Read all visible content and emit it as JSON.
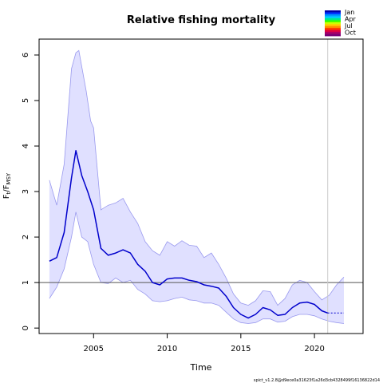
{
  "chart_data": {
    "type": "line",
    "title": "Relative fishing mortality",
    "xlabel": "Time",
    "ylabel_main": "F",
    "ylabel_sub1": "t",
    "ylabel_sep": "/F",
    "ylabel_sub2": "MSY",
    "xlim": [
      2001.3,
      2023.3
    ],
    "ylim": [
      -0.12,
      6.35
    ],
    "x_ticks": [
      2005,
      2010,
      2015,
      2020
    ],
    "y_ticks": [
      0,
      1,
      2,
      3,
      4,
      5,
      6
    ],
    "reference_line": 1,
    "last_data_time": 2020.9,
    "grid": false,
    "legend": {
      "position": "top-right",
      "items": [
        {
          "label": "Jan",
          "color": "#0000ff"
        },
        {
          "label": "Apr",
          "color": "#00cc00"
        },
        {
          "label": "Jul",
          "color": "#ff6600"
        },
        {
          "label": "Oct",
          "color": "#990066"
        }
      ]
    },
    "colors": {
      "line": "#0000cc",
      "ci_fill": "#e0e0ff",
      "ci_stroke": "#9999ee",
      "reference": "#555555",
      "vline": "#cccccc"
    },
    "series": [
      {
        "key": "estimate",
        "x": [
          2002.0,
          2002.5,
          2003.0,
          2003.5,
          2003.8,
          2004.2,
          2004.6,
          2005.0,
          2005.5,
          2006.0,
          2006.5,
          2007.0,
          2007.5,
          2008.0,
          2008.5,
          2009.0,
          2009.5,
          2010.0,
          2010.5,
          2011.0,
          2011.5,
          2012.0,
          2012.5,
          2013.0,
          2013.5,
          2014.0,
          2014.5,
          2015.0,
          2015.5,
          2016.0,
          2016.5,
          2017.0,
          2017.5,
          2018.0,
          2018.5,
          2019.0,
          2019.5,
          2020.0,
          2020.5,
          2020.9
        ],
        "y": [
          1.47,
          1.55,
          2.1,
          3.3,
          3.9,
          3.35,
          3.0,
          2.6,
          1.75,
          1.6,
          1.65,
          1.72,
          1.65,
          1.4,
          1.25,
          1.0,
          0.95,
          1.08,
          1.1,
          1.1,
          1.05,
          1.02,
          0.95,
          0.92,
          0.88,
          0.7,
          0.45,
          0.3,
          0.22,
          0.3,
          0.45,
          0.4,
          0.28,
          0.3,
          0.45,
          0.55,
          0.57,
          0.52,
          0.38,
          0.33
        ]
      },
      {
        "key": "estimate_forecast",
        "x": [
          2020.9,
          2021.5,
          2022.0
        ],
        "y": [
          0.33,
          0.33,
          0.33
        ]
      },
      {
        "key": "ci_upper",
        "x": [
          2002.0,
          2002.5,
          2003.0,
          2003.5,
          2003.8,
          2004.0,
          2004.5,
          2004.8,
          2005.0,
          2005.5,
          2006.0,
          2006.5,
          2007.0,
          2007.5,
          2008.0,
          2008.5,
          2009.0,
          2009.5,
          2010.0,
          2010.5,
          2011.0,
          2011.5,
          2012.0,
          2012.5,
          2013.0,
          2013.5,
          2014.0,
          2014.5,
          2015.0,
          2015.5,
          2016.0,
          2016.5,
          2017.0,
          2017.5,
          2018.0,
          2018.5,
          2019.0,
          2019.5,
          2020.0,
          2020.5,
          2021.0,
          2021.5,
          2022.0
        ],
        "y": [
          3.25,
          2.7,
          3.6,
          5.7,
          6.05,
          6.1,
          5.2,
          4.55,
          4.4,
          2.6,
          2.7,
          2.75,
          2.85,
          2.55,
          2.3,
          1.9,
          1.7,
          1.6,
          1.9,
          1.8,
          1.92,
          1.82,
          1.8,
          1.55,
          1.65,
          1.4,
          1.1,
          0.75,
          0.55,
          0.5,
          0.6,
          0.82,
          0.8,
          0.5,
          0.65,
          0.95,
          1.05,
          1.0,
          0.8,
          0.62,
          0.72,
          0.95,
          1.12
        ]
      },
      {
        "key": "ci_lower",
        "x": [
          2002.0,
          2002.5,
          2003.0,
          2003.5,
          2003.8,
          2004.2,
          2004.6,
          2005.0,
          2005.5,
          2006.0,
          2006.5,
          2007.0,
          2007.5,
          2008.0,
          2008.5,
          2009.0,
          2009.5,
          2010.0,
          2010.5,
          2011.0,
          2011.5,
          2012.0,
          2012.5,
          2013.0,
          2013.5,
          2014.0,
          2014.5,
          2015.0,
          2015.5,
          2016.0,
          2016.5,
          2017.0,
          2017.5,
          2018.0,
          2018.5,
          2019.0,
          2019.5,
          2020.0,
          2020.5,
          2021.0,
          2021.5,
          2022.0
        ],
        "y": [
          0.65,
          0.9,
          1.3,
          2.0,
          2.55,
          2.0,
          1.9,
          1.4,
          1.0,
          0.98,
          1.1,
          1.0,
          1.05,
          0.85,
          0.75,
          0.6,
          0.58,
          0.6,
          0.65,
          0.68,
          0.62,
          0.6,
          0.55,
          0.55,
          0.5,
          0.35,
          0.2,
          0.12,
          0.1,
          0.12,
          0.2,
          0.2,
          0.13,
          0.15,
          0.25,
          0.3,
          0.3,
          0.27,
          0.2,
          0.15,
          0.12,
          0.1
        ]
      }
    ]
  },
  "footer_text": "spict_v1.2.8@d9ece0a31623f1a26d3cb4328499f16136822d14"
}
